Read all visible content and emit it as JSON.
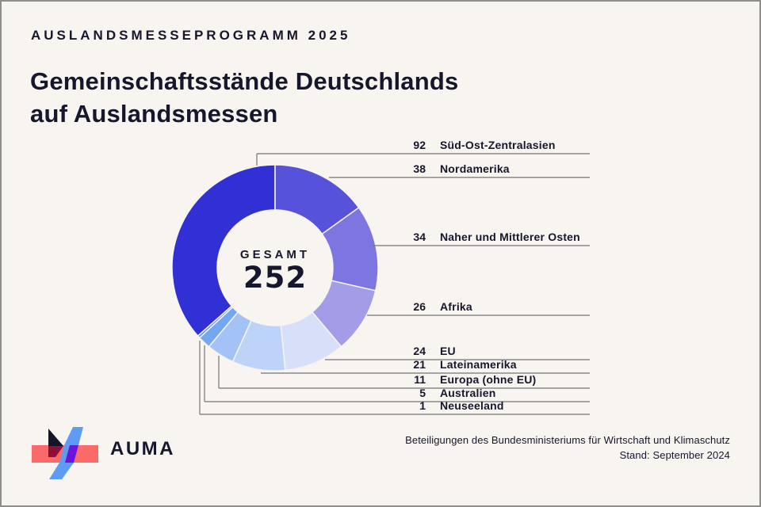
{
  "header": {
    "kicker": "AUSLANDSMESSEPROGRAMM 2025",
    "title_line1": "Gemeinschaftsstände Deutschlands",
    "title_line2": "auf Auslandsmessen"
  },
  "chart_data": {
    "type": "donut",
    "title": "Gemeinschaftsstände Deutschlands auf Auslandsmessen",
    "center_label": "GESAMT",
    "center_value": "252",
    "total": 252,
    "clockwise": true,
    "layout_note": "segments drawn clockwise, largest segment ends at 12 o'clock",
    "segments": [
      {
        "label": "Süd-Ost-Zentralasien",
        "value": 92,
        "color": "#3130D4"
      },
      {
        "label": "Nordamerika",
        "value": 38,
        "color": "#5752DA"
      },
      {
        "label": "Naher und Mittlerer Osten",
        "value": 34,
        "color": "#7D76E0"
      },
      {
        "label": "Afrika",
        "value": 26,
        "color": "#A29DE6"
      },
      {
        "label": "EU",
        "value": 24,
        "color": "#D7E0F8"
      },
      {
        "label": "Lateinamerika",
        "value": 21,
        "color": "#BED3F8"
      },
      {
        "label": "Europa (ohne EU)",
        "value": 11,
        "color": "#A3C3F6"
      },
      {
        "label": "Australien",
        "value": 5,
        "color": "#74A7F2"
      },
      {
        "label": "Neuseeland",
        "value": 1,
        "color": "#5096EF"
      }
    ]
  },
  "footer": {
    "wordmark": "AUMA",
    "credit_line1": "Beteiligungen des Bundesministeriums für Wirtschaft und Klimaschutz",
    "credit_line2": "Stand: September 2024"
  },
  "logo_colors": {
    "red": "#FA6A68",
    "crimson": "#8E1038",
    "blue": "#5E9CF4",
    "purple": "#6916DC",
    "navy": "#14142B"
  },
  "colors": {
    "background": "#F8F4EF",
    "text": "#16162D",
    "line": "#757575"
  }
}
